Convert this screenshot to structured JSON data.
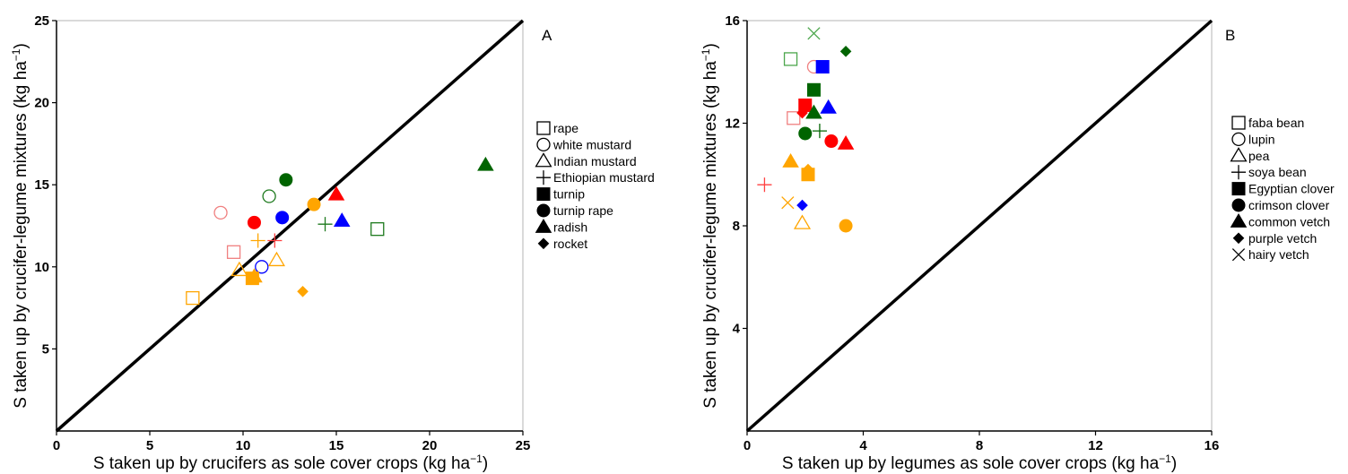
{
  "chart_data": [
    {
      "type": "scatter",
      "panel_label": "A",
      "xlabel": "S taken up by crucifers as sole cover crops (kg ha",
      "ylabel": "S taken up by crucifer-legume mixtures (kg ha",
      "unit_exponent": "−1",
      "xlim": [
        0,
        25
      ],
      "ylim": [
        0,
        25
      ],
      "xticks": [
        "0",
        "5",
        "10",
        "15",
        "20",
        "25"
      ],
      "yticks": [
        "5",
        "10",
        "15",
        "20",
        "25"
      ],
      "reference_line": "1:1",
      "legend_placement": "right",
      "legend": [
        {
          "label": "rape",
          "shape": "square",
          "filled": false
        },
        {
          "label": "white mustard",
          "shape": "circle",
          "filled": false
        },
        {
          "label": "Indian mustard",
          "shape": "triangle",
          "filled": false
        },
        {
          "label": "Ethiopian mustard",
          "shape": "plus",
          "filled": false
        },
        {
          "label": "turnip",
          "shape": "square",
          "filled": true
        },
        {
          "label": "turnip rape",
          "shape": "circle",
          "filled": true
        },
        {
          "label": "radish",
          "shape": "triangle",
          "filled": true
        },
        {
          "label": "rocket",
          "shape": "diamond",
          "filled": true
        }
      ],
      "points": [
        {
          "x": 7.3,
          "y": 8.1,
          "shape": "square",
          "filled": false,
          "color": "#FFA500"
        },
        {
          "x": 9.5,
          "y": 10.9,
          "shape": "square",
          "filled": false,
          "color": "#F08080"
        },
        {
          "x": 17.2,
          "y": 12.3,
          "shape": "square",
          "filled": false,
          "color": "#1E7A1E"
        },
        {
          "x": 8.8,
          "y": 13.3,
          "shape": "circle",
          "filled": false,
          "color": "#F08080"
        },
        {
          "x": 11.4,
          "y": 14.3,
          "shape": "circle",
          "filled": false,
          "color": "#1E7A1E"
        },
        {
          "x": 11.0,
          "y": 10.0,
          "shape": "circle",
          "filled": false,
          "color": "#0000FF"
        },
        {
          "x": 9.8,
          "y": 9.8,
          "shape": "triangle",
          "filled": false,
          "color": "#FFA500"
        },
        {
          "x": 11.8,
          "y": 10.4,
          "shape": "triangle",
          "filled": false,
          "color": "#FFA500"
        },
        {
          "x": 10.8,
          "y": 11.6,
          "shape": "plus",
          "filled": false,
          "color": "#FFA500"
        },
        {
          "x": 11.7,
          "y": 11.6,
          "shape": "plus",
          "filled": false,
          "color": "#FF4040"
        },
        {
          "x": 14.4,
          "y": 12.6,
          "shape": "plus",
          "filled": false,
          "color": "#1E7A1E"
        },
        {
          "x": 10.5,
          "y": 9.3,
          "shape": "square",
          "filled": true,
          "color": "#FFA500"
        },
        {
          "x": 10.6,
          "y": 12.7,
          "shape": "circle",
          "filled": true,
          "color": "#FF0000"
        },
        {
          "x": 12.1,
          "y": 13.0,
          "shape": "circle",
          "filled": true,
          "color": "#0000FF"
        },
        {
          "x": 12.3,
          "y": 15.3,
          "shape": "circle",
          "filled": true,
          "color": "#006400"
        },
        {
          "x": 13.8,
          "y": 13.8,
          "shape": "circle",
          "filled": true,
          "color": "#FFA500"
        },
        {
          "x": 15.0,
          "y": 14.4,
          "shape": "triangle",
          "filled": true,
          "color": "#FF0000"
        },
        {
          "x": 15.3,
          "y": 12.8,
          "shape": "triangle",
          "filled": true,
          "color": "#0000FF"
        },
        {
          "x": 23.0,
          "y": 16.2,
          "shape": "triangle",
          "filled": true,
          "color": "#006400"
        },
        {
          "x": 10.6,
          "y": 9.4,
          "shape": "triangle",
          "filled": true,
          "color": "#FFA500"
        },
        {
          "x": 13.2,
          "y": 8.5,
          "shape": "diamond",
          "filled": true,
          "color": "#FFA500"
        }
      ]
    },
    {
      "type": "scatter",
      "panel_label": "B",
      "xlabel": "S taken up by legumes as sole cover crops (kg ha",
      "ylabel": "S taken up by crucifer-legume mixtures (kg ha",
      "unit_exponent": "−1",
      "xlim": [
        0,
        16
      ],
      "ylim": [
        0,
        16
      ],
      "xticks": [
        "0",
        "4",
        "8",
        "12",
        "16"
      ],
      "yticks": [
        "4",
        "8",
        "12",
        "16"
      ],
      "reference_line": "1:1",
      "legend_placement": "right",
      "legend": [
        {
          "label": "faba bean",
          "shape": "square",
          "filled": false
        },
        {
          "label": "lupin",
          "shape": "circle",
          "filled": false
        },
        {
          "label": "pea",
          "shape": "triangle",
          "filled": false
        },
        {
          "label": "soya bean",
          "shape": "plus",
          "filled": false
        },
        {
          "label": "Egyptian clover",
          "shape": "square",
          "filled": true
        },
        {
          "label": "crimson clover",
          "shape": "circle",
          "filled": true
        },
        {
          "label": "common vetch",
          "shape": "triangle",
          "filled": true
        },
        {
          "label": "purple vetch",
          "shape": "diamond",
          "filled": true
        },
        {
          "label": "hairy vetch",
          "shape": "x",
          "filled": false
        }
      ],
      "points": [
        {
          "x": 1.5,
          "y": 14.5,
          "shape": "square",
          "filled": false,
          "color": "#4CA64C"
        },
        {
          "x": 1.6,
          "y": 12.2,
          "shape": "square",
          "filled": false,
          "color": "#F08080"
        },
        {
          "x": 2.3,
          "y": 14.2,
          "shape": "circle",
          "filled": false,
          "color": "#F08080"
        },
        {
          "x": 1.9,
          "y": 8.1,
          "shape": "triangle",
          "filled": false,
          "color": "#FFA500"
        },
        {
          "x": 0.6,
          "y": 9.6,
          "shape": "plus",
          "filled": false,
          "color": "#FF4040"
        },
        {
          "x": 2.5,
          "y": 11.7,
          "shape": "plus",
          "filled": false,
          "color": "#006400"
        },
        {
          "x": 2.6,
          "y": 14.2,
          "shape": "square",
          "filled": true,
          "color": "#0000FF"
        },
        {
          "x": 2.3,
          "y": 13.3,
          "shape": "square",
          "filled": true,
          "color": "#006400"
        },
        {
          "x": 2.0,
          "y": 12.7,
          "shape": "square",
          "filled": true,
          "color": "#FF0000"
        },
        {
          "x": 2.1,
          "y": 10.0,
          "shape": "square",
          "filled": true,
          "color": "#FFA500"
        },
        {
          "x": 2.0,
          "y": 11.6,
          "shape": "circle",
          "filled": true,
          "color": "#006400"
        },
        {
          "x": 2.9,
          "y": 11.3,
          "shape": "circle",
          "filled": true,
          "color": "#FF0000"
        },
        {
          "x": 3.4,
          "y": 8.0,
          "shape": "circle",
          "filled": true,
          "color": "#FFA500"
        },
        {
          "x": 2.3,
          "y": 12.4,
          "shape": "triangle",
          "filled": true,
          "color": "#006400"
        },
        {
          "x": 2.8,
          "y": 12.6,
          "shape": "triangle",
          "filled": true,
          "color": "#0000FF"
        },
        {
          "x": 3.4,
          "y": 11.2,
          "shape": "triangle",
          "filled": true,
          "color": "#FF0000"
        },
        {
          "x": 1.5,
          "y": 10.5,
          "shape": "triangle",
          "filled": true,
          "color": "#FFA500"
        },
        {
          "x": 1.9,
          "y": 12.4,
          "shape": "diamond",
          "filled": true,
          "color": "#FF0000"
        },
        {
          "x": 3.4,
          "y": 14.8,
          "shape": "diamond",
          "filled": true,
          "color": "#006400"
        },
        {
          "x": 2.1,
          "y": 10.2,
          "shape": "diamond",
          "filled": true,
          "color": "#FFA500"
        },
        {
          "x": 1.9,
          "y": 8.8,
          "shape": "diamond",
          "filled": true,
          "color": "#0000FF"
        },
        {
          "x": 2.3,
          "y": 15.5,
          "shape": "x",
          "filled": false,
          "color": "#4CA64C"
        },
        {
          "x": 1.4,
          "y": 8.9,
          "shape": "x",
          "filled": false,
          "color": "#FFA500"
        }
      ]
    }
  ]
}
